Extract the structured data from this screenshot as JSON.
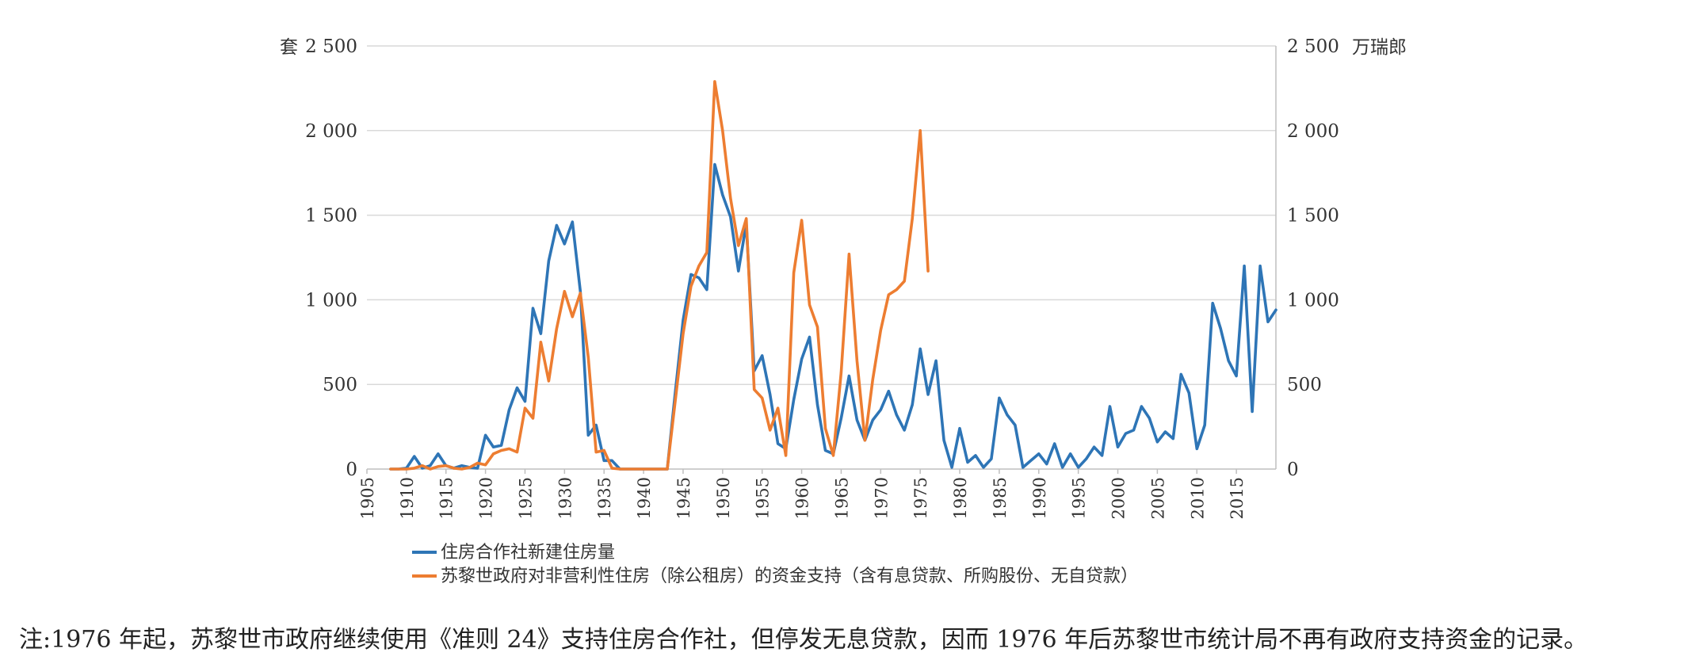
{
  "chart_data": {
    "type": "line",
    "left_axis": {
      "unit": "套",
      "ylim": [
        0,
        2500
      ],
      "ticks": [
        "0",
        "500",
        "1 000",
        "1 500",
        "2 000",
        "2 500"
      ]
    },
    "right_axis": {
      "unit": "万瑞郎",
      "ylim": [
        0,
        2500
      ],
      "ticks": [
        "0",
        "500",
        "1 000",
        "1 500",
        "2 000",
        "2 500"
      ]
    },
    "xlim": [
      1905,
      2020
    ],
    "x_ticks": [
      "1905",
      "1910",
      "1915",
      "1920",
      "1925",
      "1930",
      "1935",
      "1940",
      "1945",
      "1950",
      "1955",
      "1960",
      "1965",
      "1970",
      "1975",
      "1980",
      "1985",
      "1990",
      "1995",
      "2000",
      "2005",
      "2010",
      "2015"
    ],
    "grid": "horizontal",
    "legend_position": "bottom",
    "series": [
      {
        "name": "住房合作社新建住房量",
        "axis": "left",
        "color": "#2E75B6",
        "x": [
          1908,
          1909,
          1910,
          1911,
          1912,
          1913,
          1914,
          1915,
          1916,
          1917,
          1918,
          1919,
          1920,
          1921,
          1922,
          1923,
          1924,
          1925,
          1926,
          1927,
          1928,
          1929,
          1930,
          1931,
          1932,
          1933,
          1934,
          1935,
          1936,
          1937,
          1938,
          1939,
          1940,
          1941,
          1942,
          1943,
          1944,
          1945,
          1946,
          1947,
          1948,
          1949,
          1950,
          1951,
          1952,
          1953,
          1954,
          1955,
          1956,
          1957,
          1958,
          1959,
          1960,
          1961,
          1962,
          1963,
          1964,
          1965,
          1966,
          1967,
          1968,
          1969,
          1970,
          1971,
          1972,
          1973,
          1974,
          1975,
          1976,
          1977,
          1978,
          1979,
          1980,
          1981,
          1982,
          1983,
          1984,
          1985,
          1986,
          1987,
          1988,
          1989,
          1990,
          1991,
          1992,
          1993,
          1994,
          1995,
          1996,
          1997,
          1998,
          1999,
          2000,
          2001,
          2002,
          2003,
          2004,
          2005,
          2006,
          2007,
          2008,
          2009,
          2010,
          2011,
          2012,
          2013,
          2014,
          2015,
          2016,
          2017,
          2018,
          2019,
          2020
        ],
        "values": [
          0,
          0,
          5,
          75,
          5,
          20,
          90,
          20,
          5,
          20,
          10,
          5,
          200,
          130,
          140,
          350,
          480,
          400,
          950,
          800,
          1230,
          1440,
          1330,
          1460,
          1050,
          200,
          260,
          50,
          50,
          0,
          0,
          0,
          0,
          0,
          0,
          0,
          450,
          880,
          1150,
          1130,
          1060,
          1800,
          1620,
          1490,
          1170,
          1450,
          580,
          670,
          440,
          150,
          120,
          410,
          650,
          780,
          380,
          110,
          90,
          300,
          550,
          290,
          170,
          290,
          350,
          460,
          320,
          230,
          380,
          710,
          440,
          640,
          170,
          10,
          240,
          40,
          80,
          10,
          60,
          420,
          320,
          260,
          10,
          50,
          90,
          30,
          150,
          10,
          90,
          10,
          60,
          130,
          80,
          370,
          130,
          210,
          230,
          370,
          300,
          160,
          220,
          180,
          560,
          450,
          120,
          260,
          980,
          830,
          640,
          550,
          1200,
          340,
          1200,
          870,
          940
        ]
      },
      {
        "name": "苏黎世政府对非营利性住房（除公租房）的资金支持（含有息贷款、所购股份、无自贷款）",
        "axis": "right",
        "color": "#ED7D31",
        "x": [
          1908,
          1909,
          1910,
          1911,
          1912,
          1913,
          1914,
          1915,
          1916,
          1917,
          1918,
          1919,
          1920,
          1921,
          1922,
          1923,
          1924,
          1925,
          1926,
          1927,
          1928,
          1929,
          1930,
          1931,
          1932,
          1933,
          1934,
          1935,
          1936,
          1937,
          1938,
          1939,
          1940,
          1941,
          1942,
          1943,
          1944,
          1945,
          1946,
          1947,
          1948,
          1949,
          1950,
          1951,
          1952,
          1953,
          1954,
          1955,
          1956,
          1957,
          1958,
          1959,
          1960,
          1961,
          1962,
          1963,
          1964,
          1965,
          1966,
          1967,
          1968,
          1969,
          1970,
          1971,
          1972,
          1973,
          1974,
          1975,
          1976
        ],
        "values": [
          0,
          0,
          0,
          5,
          20,
          0,
          15,
          20,
          5,
          0,
          10,
          35,
          25,
          90,
          110,
          120,
          100,
          360,
          300,
          750,
          520,
          830,
          1050,
          900,
          1040,
          660,
          100,
          110,
          5,
          0,
          0,
          0,
          0,
          0,
          0,
          0,
          400,
          800,
          1080,
          1200,
          1280,
          2290,
          2000,
          1600,
          1320,
          1480,
          470,
          420,
          230,
          360,
          80,
          1160,
          1470,
          970,
          840,
          240,
          80,
          570,
          1270,
          640,
          170,
          530,
          820,
          1030,
          1060,
          1110,
          1480,
          2000,
          1170
        ]
      }
    ]
  },
  "note": "注:1976 年起，苏黎世市政府继续使用《准则 24》支持住房合作社，但停发无息贷款，因而 1976 年后苏黎世市统计局不再有政府支持资金的记录。"
}
